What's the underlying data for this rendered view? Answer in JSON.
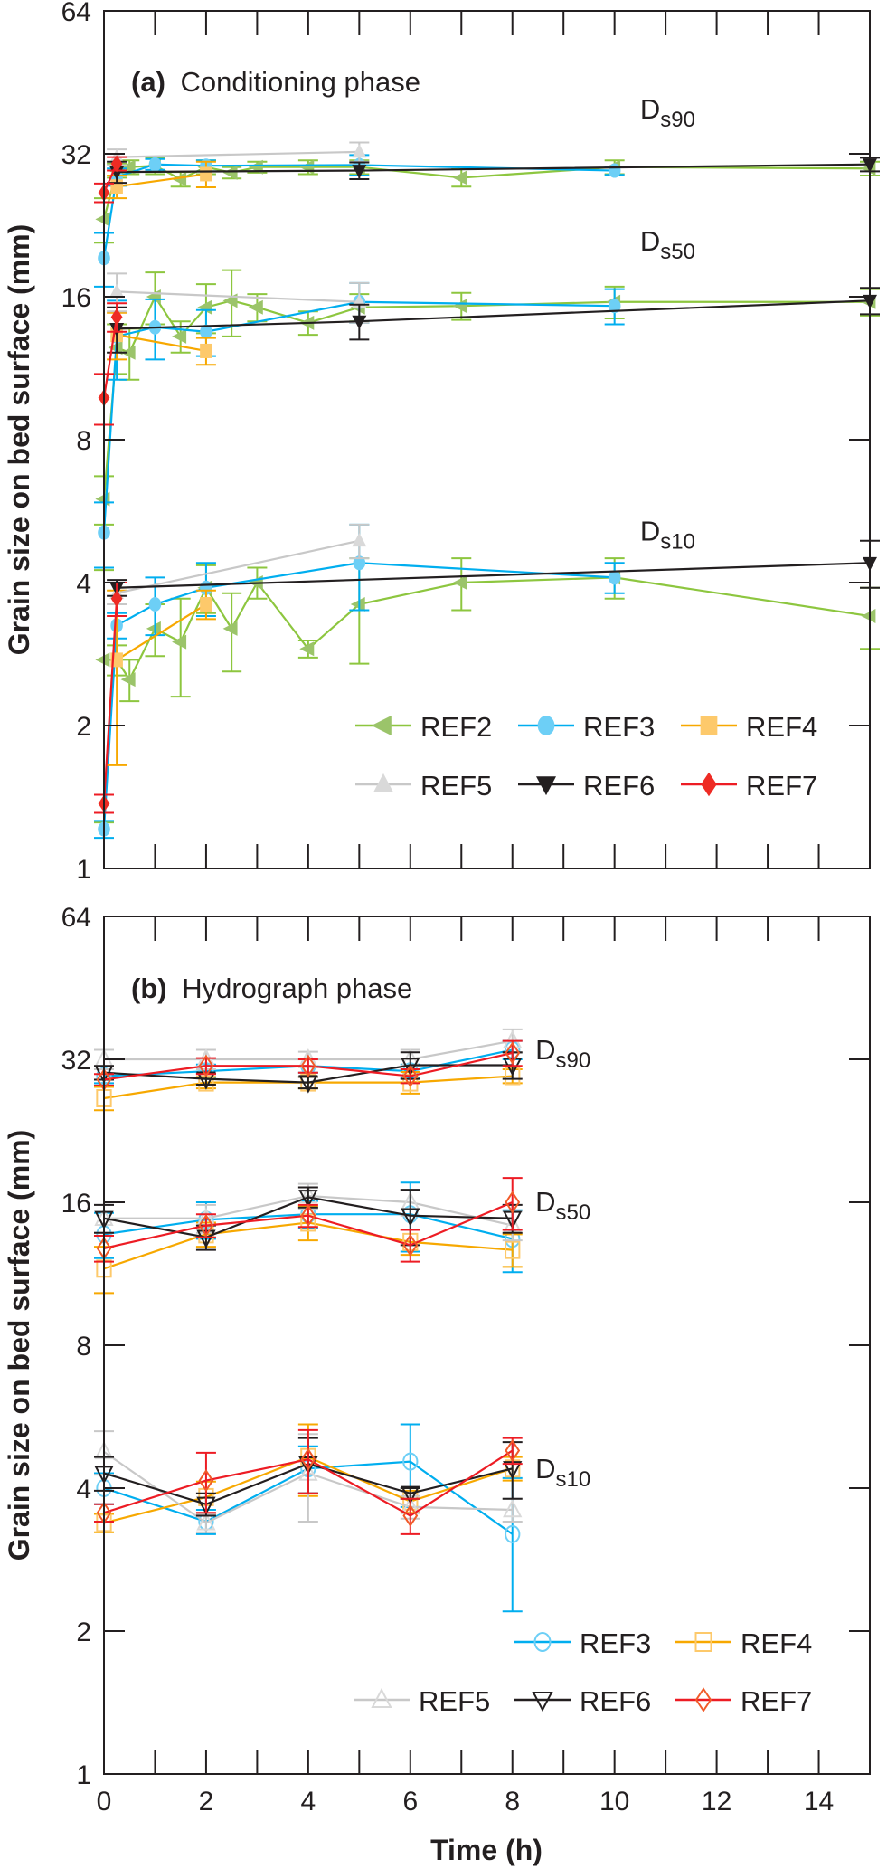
{
  "chart_data": [
    {
      "type": "line",
      "id": "a",
      "title_bold": "(a)",
      "title": "Conditioning phase",
      "xlabel": "",
      "ylabel": "Grain size on bed surface (mm)",
      "yscale": "log2",
      "xlim": [
        0,
        15
      ],
      "ylim": [
        1,
        64
      ],
      "yticks": [
        1,
        2,
        4,
        8,
        16,
        32,
        64
      ],
      "xticks_minor": [
        0,
        1,
        2,
        3,
        4,
        5,
        6,
        7,
        8,
        9,
        10,
        11,
        12,
        13,
        14,
        15
      ],
      "xtick_labels": [],
      "legend_position": "bottom-right",
      "markers_filled": true,
      "annotations": [
        {
          "text": "D",
          "sub": "s90",
          "x": 10.5,
          "y": 38
        },
        {
          "text": "D",
          "sub": "s50",
          "x": 10.5,
          "y": 20
        },
        {
          "text": "D",
          "sub": "s10",
          "x": 10.5,
          "y": 4.9
        }
      ],
      "series": [
        {
          "name": "REF2",
          "color": "#8dc63f",
          "marker": "triangle-left",
          "marker_color": "#9bc46a",
          "groups": {
            "Ds90": {
              "x": [
                0,
                0.25,
                0.5,
                1,
                1.5,
                2,
                2.5,
                3,
                4,
                5,
                7,
                10,
                15
              ],
              "y": [
                23.3,
                29.5,
                30,
                30.2,
                28.3,
                30,
                29.2,
                30,
                30,
                30,
                28.5,
                30,
                29.8
              ],
              "err": [
                2.5,
                1,
                1,
                1.2,
                1,
                1,
                0.8,
                0.8,
                1,
                1,
                1.2,
                1,
                1
              ]
            },
            "Ds50": {
              "x": [
                0,
                0.25,
                0.5,
                1,
                1.5,
                2,
                2.5,
                3,
                4,
                5,
                7,
                10,
                15
              ],
              "y": [
                6.0,
                12.5,
                12.2,
                16,
                13.2,
                15.2,
                15.7,
                15.2,
                14.1,
                15.2,
                15.3,
                15.6,
                15.6
              ],
              "err": [
                0.7,
                1.5,
                1.5,
                2,
                1,
                1.8,
                2.5,
                1,
                0.8,
                1,
                1,
                1.2,
                1
              ]
            },
            "Ds10": {
              "x": [
                0,
                0.25,
                0.5,
                1,
                1.5,
                2,
                2.5,
                3,
                4,
                5,
                7,
                10,
                15
              ],
              "y": [
                2.75,
                2.75,
                2.5,
                3.2,
                3.0,
                3.9,
                3.2,
                4.0,
                2.9,
                3.6,
                4.0,
                4.1,
                3.4
              ],
              "err": [
                1.5,
                0.2,
                0.25,
                0.4,
                0.7,
                0.45,
                0.6,
                0.3,
                0.12,
                0.9,
                0.5,
                0.4,
                0.5
              ]
            }
          }
        },
        {
          "name": "REF3",
          "color": "#00aeef",
          "marker": "circle",
          "marker_color": "#6dcff6",
          "groups": {
            "Ds90": {
              "x": [
                0,
                0.25,
                1,
                2,
                5,
                10
              ],
              "y": [
                19.3,
                28.6,
                30.4,
                30.2,
                30.3,
                29.5
              ],
              "err": [
                2.5,
                1.2,
                0.8,
                0.8,
                1.5,
                0.6
              ]
            },
            "Ds50": {
              "x": [
                0,
                0.25,
                1,
                2,
                5,
                10
              ],
              "y": [
                5.1,
                13.2,
                13.8,
                13.5,
                15.6,
                15.3
              ],
              "err": [
                0.8,
                2.5,
                2,
                1.5,
                1.5,
                1.3
              ]
            },
            "Ds10": {
              "x": [
                0,
                0.25,
                1,
                2,
                5,
                10
              ],
              "y": [
                1.21,
                3.25,
                3.6,
                3.9,
                4.4,
                4.1
              ],
              "err": [
                0.05,
                0.2,
                0.5,
                0.5,
                0.9,
                0.3
              ]
            }
          }
        },
        {
          "name": "REF4",
          "color": "#f7a800",
          "marker": "square",
          "marker_color": "#fdc96b",
          "groups": {
            "Ds90": {
              "x": [
                0.25,
                2
              ],
              "y": [
                27.3,
                29
              ],
              "err": [
                1.5,
                1.8
              ]
            },
            "Ds50": {
              "x": [
                0.25,
                2
              ],
              "y": [
                13.3,
                12.3
              ],
              "err": [
                1.5,
                0.8
              ]
            },
            "Ds10": {
              "x": [
                0.25,
                2
              ],
              "y": [
                2.75,
                3.6
              ],
              "err": [
                1.1,
                0.25
              ]
            }
          }
        },
        {
          "name": "REF5",
          "color": "#c8c8c8",
          "marker": "triangle-up",
          "marker_color": "#d9d9d9",
          "groups": {
            "Ds90": {
              "x": [
                0.25,
                5
              ],
              "y": [
                31.5,
                32.3
              ],
              "err": [
                1.2,
                1.5
              ]
            },
            "Ds50": {
              "x": [
                0.25,
                5
              ],
              "y": [
                16.4,
                15.6
              ],
              "err": [
                1.5,
                1.5
              ]
            },
            "Ds10": {
              "x": [
                0.25,
                5
              ],
              "y": [
                3.8,
                4.9
              ],
              "err": [
                0.2,
                0.4
              ]
            }
          }
        },
        {
          "name": "REF6",
          "color": "#231f20",
          "marker": "triangle-down",
          "marker_color": "#231f20",
          "groups": {
            "Ds90": {
              "x": [
                0.25,
                5,
                15
              ],
              "y": [
                29.3,
                29.5,
                30.4
              ],
              "err": [
                1.5,
                1.2,
                1
              ]
            },
            "Ds50": {
              "x": [
                0.25,
                5,
                15
              ],
              "y": [
                13.7,
                14.2,
                15.7
              ],
              "err": [
                1.5,
                1.2,
                1
              ]
            },
            "Ds10": {
              "x": [
                0.25,
                15
              ],
              "y": [
                3.9,
                4.4
              ],
              "err": [
                0.15,
                0.5
              ]
            }
          }
        },
        {
          "name": "REF7",
          "color": "#ed1c24",
          "marker": "diamond",
          "marker_color": "#ee2b24",
          "groups": {
            "Ds90": {
              "x": [
                0,
                0.25
              ],
              "y": [
                26.5,
                30.5
              ],
              "err": [
                1.2,
                1
              ]
            },
            "Ds50": {
              "x": [
                0,
                0.25
              ],
              "y": [
                9.8,
                14.5
              ],
              "err": [
                1.2,
                1
              ]
            },
            "Ds10": {
              "x": [
                0,
                0.25
              ],
              "y": [
                1.37,
                3.7
              ],
              "err": [
                0.06,
                0.3
              ]
            }
          }
        }
      ]
    },
    {
      "type": "line",
      "id": "b",
      "title_bold": "(b)",
      "title": "Hydrograph phase",
      "xlabel": "Time (h)",
      "ylabel": "Grain size on bed surface (mm)",
      "yscale": "log2",
      "xlim": [
        0,
        15
      ],
      "ylim": [
        1,
        64
      ],
      "yticks": [
        1,
        2,
        4,
        8,
        16,
        32,
        64
      ],
      "xticks_minor": [
        0,
        1,
        2,
        3,
        4,
        5,
        6,
        7,
        8,
        9,
        10,
        11,
        12,
        13,
        14,
        15
      ],
      "xtick_labels": [
        0,
        2,
        4,
        6,
        8,
        10,
        12,
        14
      ],
      "legend_position": "bottom-right",
      "markers_filled": false,
      "annotations": [
        {
          "text": "D",
          "sub": "s90",
          "x": 8.45,
          "y": 32
        },
        {
          "text": "D",
          "sub": "s50",
          "x": 8.45,
          "y": 15.3
        },
        {
          "text": "D",
          "sub": "s10",
          "x": 8.45,
          "y": 4.2
        }
      ],
      "series": [
        {
          "name": "REF3",
          "color": "#00aeef",
          "marker": "circle",
          "marker_color": "#6dcff6",
          "groups": {
            "Ds90": {
              "x": [
                0,
                2,
                4,
                6,
                8
              ],
              "y": [
                29.5,
                30.2,
                31,
                30.2,
                33.5
              ],
              "err": [
                1,
                1,
                1,
                1,
                1.5
              ]
            },
            "Ds50": {
              "x": [
                0,
                2,
                4,
                6,
                8
              ],
              "y": [
                13.7,
                14.7,
                15.1,
                15.1,
                13.4
              ],
              "err": [
                1.5,
                1.3,
                1,
                2.5,
                2
              ]
            },
            "Ds10": {
              "x": [
                0,
                2,
                4,
                6,
                8
              ],
              "y": [
                4.0,
                3.4,
                4.4,
                4.55,
                3.2
              ],
              "err": [
                0.3,
                0.2,
                0.5,
                0.9,
                1.0
              ]
            }
          }
        },
        {
          "name": "REF4",
          "color": "#f7a800",
          "marker": "square",
          "marker_color": "#fdc96b",
          "groups": {
            "Ds90": {
              "x": [
                0,
                2,
                4,
                6,
                8
              ],
              "y": [
                26.5,
                28.6,
                28.6,
                28.6,
                29.5
              ],
              "err": [
                1.5,
                0.8,
                0.8,
                1.5,
                1
              ]
            },
            "Ds50": {
              "x": [
                0,
                2,
                4,
                6,
                8
              ],
              "y": [
                11.6,
                13.7,
                14.5,
                13.2,
                12.7
              ],
              "err": [
                1.3,
                0.8,
                1.2,
                0.8,
                1
              ]
            },
            "Ds10": {
              "x": [
                0,
                2,
                4,
                6,
                8
              ],
              "y": [
                3.38,
                3.83,
                4.65,
                3.75,
                4.4
              ],
              "err": [
                0.15,
                0.3,
                0.8,
                0.2,
                0.25
              ]
            }
          }
        },
        {
          "name": "REF5",
          "color": "#c8c8c8",
          "marker": "triangle-up",
          "marker_color": "#d9d9d9",
          "groups": {
            "Ds90": {
              "x": [
                0,
                2,
                4,
                6,
                8
              ],
              "y": [
                32,
                32,
                32,
                32,
                35
              ],
              "err": [
                1.5,
                1.5,
                1.2,
                1.5,
                2
              ]
            },
            "Ds50": {
              "x": [
                0,
                2,
                4,
                6,
                8
              ],
              "y": [
                14.8,
                14.8,
                16.5,
                16,
                14.3
              ],
              "err": [
                1,
                1,
                1,
                1,
                1
              ]
            },
            "Ds10": {
              "x": [
                0,
                2,
                4,
                6,
                8
              ],
              "y": [
                4.77,
                3.38,
                4.3,
                3.65,
                3.6
              ],
              "err": [
                0.5,
                0.15,
                0.9,
                0.2,
                0.2
              ]
            }
          }
        },
        {
          "name": "REF6",
          "color": "#231f20",
          "marker": "triangle-down",
          "marker_color": "#231f20",
          "groups": {
            "Ds90": {
              "x": [
                0,
                2,
                4,
                6,
                8
              ],
              "y": [
                30,
                29.1,
                28.6,
                31.1,
                31.1
              ],
              "err": [
                1,
                0.8,
                0.8,
                2,
                2
              ]
            },
            "Ds50": {
              "x": [
                0,
                2,
                4,
                6,
                8
              ],
              "y": [
                14.8,
                13.5,
                16.4,
                15,
                14.8
              ],
              "err": [
                1,
                0.8,
                0.8,
                2,
                1
              ]
            },
            "Ds10": {
              "x": [
                0,
                2,
                4,
                6,
                8
              ],
              "y": [
                4.3,
                3.7,
                4.5,
                3.9,
                4.4
              ],
              "err": [
                0.35,
                0.2,
                0.6,
                0.1,
                0.6
              ]
            }
          }
        },
        {
          "name": "REF7",
          "color": "#ed1c24",
          "marker": "diamond",
          "marker_color": "#f15a29",
          "groups": {
            "Ds90": {
              "x": [
                0,
                2,
                4,
                6,
                8
              ],
              "y": [
                29,
                31,
                31,
                29.5,
                33
              ],
              "err": [
                0.8,
                1.2,
                1,
                1,
                2
              ]
            },
            "Ds50": {
              "x": [
                0,
                2,
                4,
                6,
                8
              ],
              "y": [
                12.8,
                14.3,
                15,
                13,
                16
              ],
              "err": [
                0.8,
                0.8,
                0.8,
                1,
                2
              ]
            },
            "Ds10": {
              "x": [
                0,
                2,
                4,
                6,
                8
              ],
              "y": [
                3.55,
                4.15,
                4.6,
                3.5,
                4.8
              ],
              "err": [
                0.15,
                0.6,
                0.7,
                0.3,
                0.3
              ]
            }
          }
        }
      ]
    }
  ]
}
